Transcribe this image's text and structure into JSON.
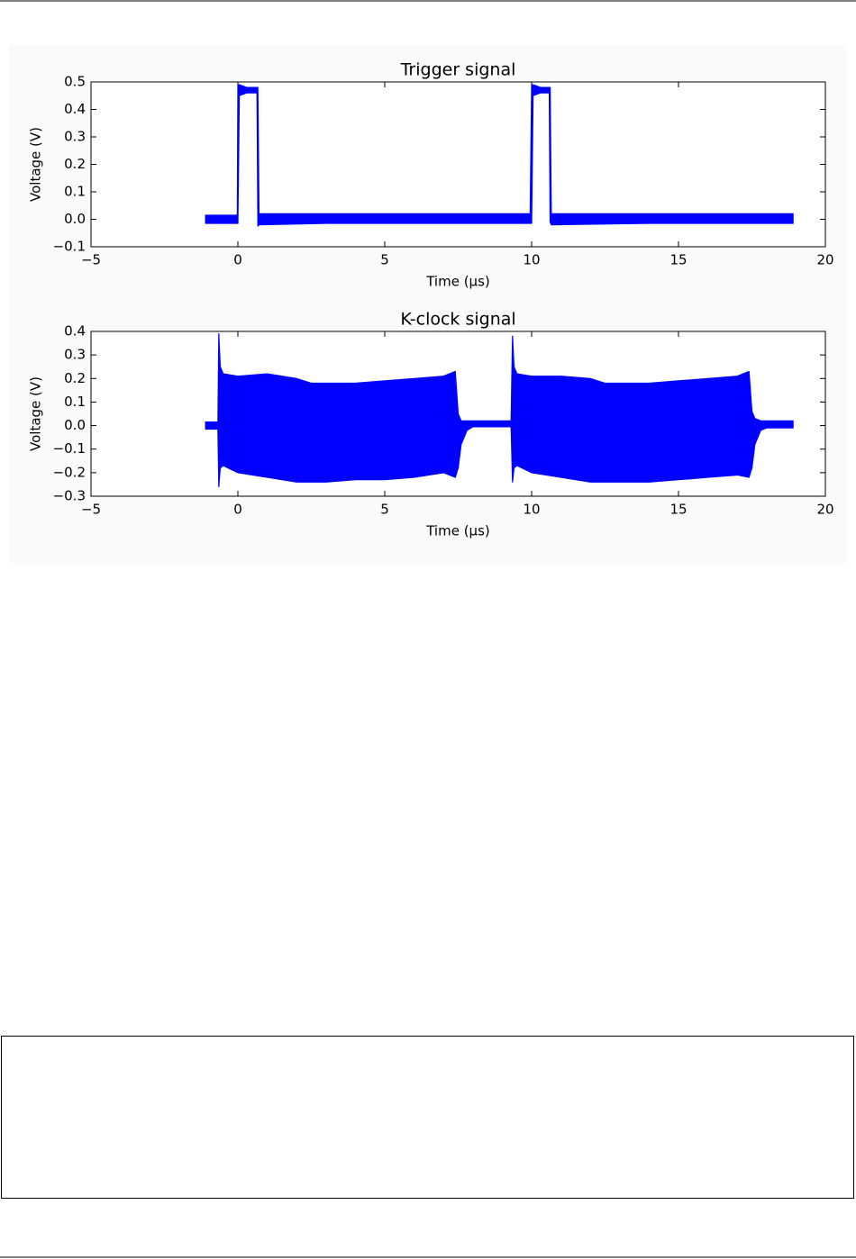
{
  "chart_data": [
    {
      "type": "band",
      "title": "Trigger signal",
      "xlabel": "Time (μs)",
      "ylabel": "Voltage (V)",
      "color": "#0000ff",
      "x": [
        -1.1,
        -0.02,
        0,
        0.05,
        0.3,
        0.65,
        0.68,
        0.72,
        3,
        6,
        9.95,
        10.0,
        10.05,
        10.3,
        10.6,
        10.63,
        10.67,
        14,
        18.9
      ],
      "high": [
        0.015,
        0.015,
        0.49,
        0.49,
        0.48,
        0.48,
        0.48,
        0.02,
        0.02,
        0.02,
        0.02,
        0.49,
        0.49,
        0.48,
        0.48,
        0.48,
        0.02,
        0.02,
        0.02
      ],
      "low": [
        -0.015,
        -0.015,
        -0.015,
        0.45,
        0.46,
        0.46,
        -0.025,
        -0.02,
        -0.015,
        -0.015,
        -0.015,
        -0.015,
        0.45,
        0.46,
        0.46,
        -0.01,
        -0.02,
        -0.015,
        -0.015
      ],
      "xlim": [
        -5,
        20
      ],
      "ylim": [
        -0.1,
        0.5
      ],
      "xticks": [
        {
          "value": -5,
          "label": "−5"
        },
        0,
        5,
        10,
        15,
        20
      ],
      "yticks": [
        {
          "value": -0.1,
          "label": "−0.1"
        },
        {
          "value": 0,
          "label": "0.0"
        },
        0.1,
        0.2,
        0.3,
        0.4,
        0.5
      ]
    },
    {
      "type": "band",
      "title": "K-clock signal",
      "xlabel": "Time (μs)",
      "ylabel": "Voltage (V)",
      "color": "#0000ff",
      "x": [
        -1.1,
        -0.68,
        -0.65,
        -0.6,
        -0.5,
        0,
        1,
        2,
        2.5,
        3,
        4,
        5,
        6,
        7,
        7.4,
        7.5,
        7.6,
        7.8,
        8,
        9,
        9.3,
        9.35,
        9.4,
        9.5,
        10,
        11,
        12,
        12.5,
        13,
        14,
        15,
        16,
        17,
        17.4,
        17.5,
        17.6,
        17.8,
        18,
        18.9
      ],
      "high": [
        0.015,
        0.015,
        0.39,
        0.25,
        0.22,
        0.21,
        0.22,
        0.2,
        0.18,
        0.18,
        0.18,
        0.19,
        0.2,
        0.21,
        0.23,
        0.05,
        0.02,
        0.02,
        0.02,
        0.02,
        0.02,
        0.38,
        0.25,
        0.22,
        0.21,
        0.21,
        0.2,
        0.18,
        0.18,
        0.18,
        0.19,
        0.2,
        0.21,
        0.23,
        0.06,
        0.03,
        0.02,
        0.02,
        0.02
      ],
      "low": [
        -0.015,
        -0.015,
        -0.26,
        -0.18,
        -0.17,
        -0.2,
        -0.22,
        -0.24,
        -0.24,
        -0.24,
        -0.23,
        -0.23,
        -0.22,
        -0.2,
        -0.22,
        -0.18,
        -0.08,
        -0.02,
        -0.005,
        -0.005,
        -0.005,
        -0.24,
        -0.18,
        -0.17,
        -0.2,
        -0.22,
        -0.24,
        -0.24,
        -0.24,
        -0.24,
        -0.23,
        -0.22,
        -0.21,
        -0.22,
        -0.18,
        -0.08,
        -0.02,
        -0.01,
        -0.01
      ],
      "xlim": [
        -5,
        20
      ],
      "ylim": [
        -0.3,
        0.4
      ],
      "xticks": [
        {
          "value": -5,
          "label": "−5"
        },
        0,
        5,
        10,
        15,
        20
      ],
      "yticks": [
        {
          "value": -0.3,
          "label": "−0.3"
        },
        {
          "value": -0.2,
          "label": "−0.2"
        },
        {
          "value": -0.1,
          "label": "−0.1"
        },
        {
          "value": 0,
          "label": "0.0"
        },
        0.1,
        0.2,
        0.3,
        0.4
      ]
    }
  ]
}
